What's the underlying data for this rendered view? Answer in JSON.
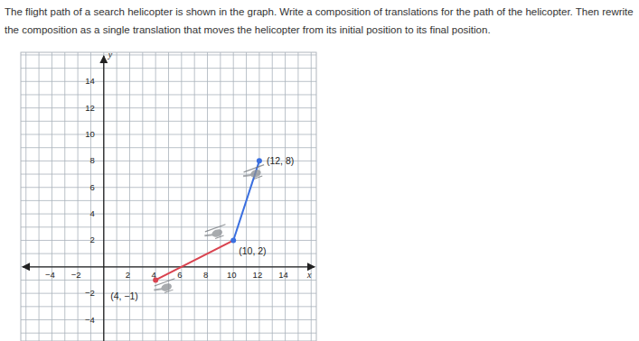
{
  "chart_data": {
    "type": "scatter",
    "title": "The flight path of a search helicopter is shown in the graph. Write a composition of translations for the path of the helicopter. Then rewrite the composition as a single translation that moves the helicopter from its initial position to its final position.",
    "x_label": "x",
    "y_label": "y",
    "x": [
      4,
      10,
      12
    ],
    "values": [
      -1,
      2,
      8
    ],
    "value_labels": [
      "(4, −1)",
      "(10, 2)",
      "(12, 8)"
    ],
    "colors": [
      "#d9434f",
      "#3a6fe0",
      "#3a6fe0"
    ],
    "line_style": "solid",
    "marker": "circle",
    "xlim": [
      -6.4,
      16.4
    ],
    "ylim": [
      -5.6,
      16.2
    ],
    "xticks": [
      {
        "value": -4,
        "label": "−4"
      },
      {
        "value": -2,
        "label": "−2"
      },
      2,
      4,
      6,
      8,
      10,
      12,
      14
    ],
    "yticks": [
      {
        "value": -4,
        "label": "−4"
      },
      {
        "value": -2,
        "label": "−2"
      },
      2,
      4,
      6,
      8,
      10,
      12,
      14
    ],
    "grid": true
  }
}
